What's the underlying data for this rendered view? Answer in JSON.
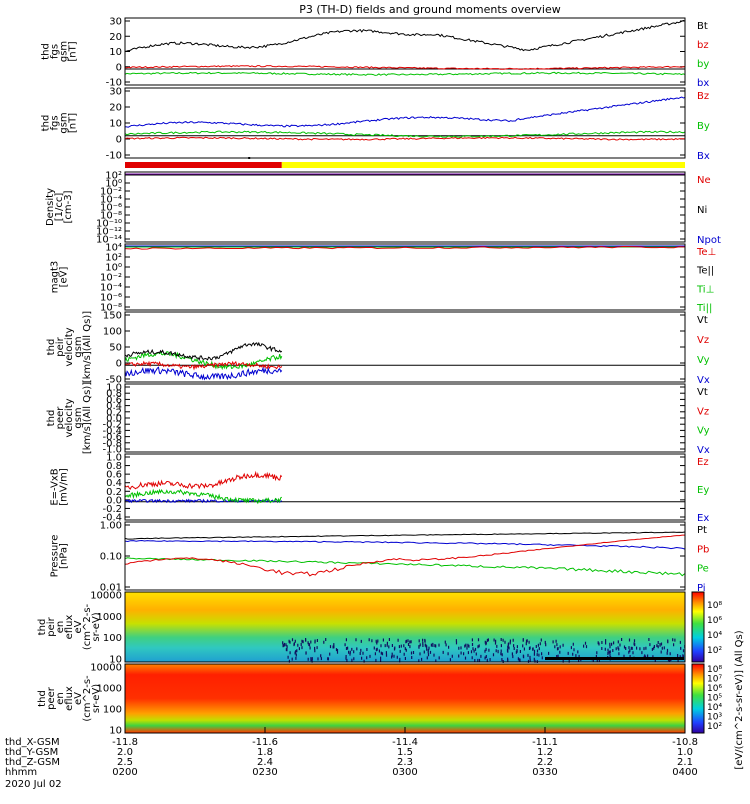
{
  "title": "P3 (TH-D) fields and ground moments overview",
  "colors": {
    "black": "#000000",
    "red": "#e00000",
    "green": "#00c000",
    "blue": "#0000d0",
    "yellow": "#ffff00",
    "purple": "#7000a0",
    "lime": "#30d030"
  },
  "panels": [
    {
      "id": "fgs-gsm",
      "ylabel": [
        "thd",
        "fgs",
        "gsm",
        "[nT]"
      ],
      "ticks": [
        "30",
        "20",
        "10",
        "0",
        "-10"
      ],
      "legend": [
        {
          "text": "Bt",
          "color": "#000000"
        },
        {
          "text": "bz",
          "color": "#e00000"
        },
        {
          "text": "by",
          "color": "#00c000"
        },
        {
          "text": "bx",
          "color": "#0000d0"
        }
      ]
    },
    {
      "id": "fgs-gsm-2",
      "ylabel": [
        "thd",
        "fgs",
        "gsm",
        "[nT]"
      ],
      "ticks": [
        "30",
        "20",
        "10",
        "0",
        "-10"
      ],
      "legend": [
        {
          "text": "Bz",
          "color": "#e00000"
        },
        {
          "text": "By",
          "color": "#00c000"
        },
        {
          "text": "Bx",
          "color": "#0000d0"
        }
      ]
    },
    {
      "id": "density",
      "ylabel": [
        "Density",
        "[1/cc]",
        "[cm-3]"
      ],
      "ticks": [
        "10²",
        "10⁰",
        "10⁻²",
        "10⁻⁴",
        "10⁻⁶",
        "10⁻⁸",
        "10⁻¹⁰",
        "10⁻¹²",
        "10⁻¹⁴"
      ],
      "legend": [
        {
          "text": "Ne",
          "color": "#e00000"
        },
        {
          "text": "Ni",
          "color": "#000000"
        },
        {
          "text": "Npot",
          "color": "#0000d0"
        }
      ]
    },
    {
      "id": "temperature",
      "ylabel": [
        "magt3",
        "[eV]"
      ],
      "ticks": [
        "10⁴",
        "10²",
        "10⁰",
        "10⁻²",
        "10⁻⁴",
        "10⁻⁶",
        "10⁻⁸"
      ],
      "legend": [
        {
          "text": "Te⊥",
          "color": "#e00000"
        },
        {
          "text": "Te||",
          "color": "#000000"
        },
        {
          "text": "Ti⊥",
          "color": "#00c000"
        },
        {
          "text": "Ti||",
          "color": "#00c000"
        }
      ]
    },
    {
      "id": "peir-velocity",
      "ylabel": [
        "thd",
        "peir",
        "velocity",
        "gsm",
        "[km/s](All Qs)]"
      ],
      "ticks": [
        "150",
        "100",
        "50",
        "0",
        "-50"
      ],
      "legend": [
        {
          "text": "Vt",
          "color": "#000000"
        },
        {
          "text": "Vz",
          "color": "#e00000"
        },
        {
          "text": "Vy",
          "color": "#00c000"
        },
        {
          "text": "Vx",
          "color": "#0000d0"
        }
      ]
    },
    {
      "id": "peer-velocity",
      "ylabel": [
        "thd",
        "peer",
        "velocity",
        "gsm",
        "[km/s](All Qs)]"
      ],
      "ticks": [
        "1.0",
        "0.8",
        "0.6",
        "0.4",
        "0.2",
        "0.0",
        "-0.2",
        "-0.4",
        "-0.6",
        "-0.8",
        "-1.0"
      ],
      "legend": [
        {
          "text": "Vt",
          "color": "#000000"
        },
        {
          "text": "Vz",
          "color": "#e00000"
        },
        {
          "text": "Vy",
          "color": "#00c000"
        },
        {
          "text": "Vx",
          "color": "#0000d0"
        }
      ]
    },
    {
      "id": "efield",
      "ylabel": [
        "E=-VxB",
        "[mV/m]"
      ],
      "ticks": [
        "1.0",
        "0.8",
        "0.6",
        "0.4",
        "0.2",
        "0.0",
        "-0.2",
        "-0.4"
      ],
      "legend": [
        {
          "text": "Ez",
          "color": "#e00000"
        },
        {
          "text": "Ey",
          "color": "#00c000"
        },
        {
          "text": "Ex",
          "color": "#0000d0"
        }
      ]
    },
    {
      "id": "pressure",
      "ylabel": [
        "Pressure",
        "[nPa]"
      ],
      "ticks": [
        "1.00",
        "0.10",
        "0.01"
      ],
      "legend": [
        {
          "text": "Pt",
          "color": "#000000"
        },
        {
          "text": "Pb",
          "color": "#e00000"
        },
        {
          "text": "Pe",
          "color": "#00c000"
        },
        {
          "text": "Pi",
          "color": "#0000d0"
        }
      ]
    },
    {
      "id": "peir-spec",
      "ylabel": [
        "thd",
        "peir",
        "en",
        "eflux",
        "eV",
        "(cm^2-s-",
        "sr-eV)"
      ],
      "ticks": [
        "10000",
        "1000",
        "100",
        "10"
      ]
    },
    {
      "id": "peer-spec",
      "ylabel": [
        "thd",
        "peer",
        "en",
        "eflux",
        "eV",
        "(cm^2-s-",
        "sr-eV)"
      ],
      "ticks": [
        "10000",
        "1000",
        "100",
        "10"
      ]
    }
  ],
  "colorbar": {
    "label": "[eV/(cm^2-s-sr-eV)] (All Qs)",
    "top_ticks": [
      "10⁸",
      "10⁶",
      "10⁴",
      "10²"
    ],
    "bottom_ticks": [
      "10⁸",
      "10⁷",
      "10⁶",
      "10⁵",
      "10⁴",
      "10³",
      "10²"
    ]
  },
  "axis": {
    "rows": [
      {
        "name": "thd_X-GSM",
        "values": [
          "-11.8",
          "-11.6",
          "-11.4",
          "-11.1",
          "-10.8"
        ]
      },
      {
        "name": "thd_Y-GSM",
        "values": [
          "2.0",
          "1.8",
          "1.5",
          "1.2",
          "1.0"
        ]
      },
      {
        "name": "thd_Z-GSM",
        "values": [
          "2.5",
          "2.4",
          "2.3",
          "2.2",
          "2.1"
        ]
      },
      {
        "name": "hhmm",
        "values": [
          "0200",
          "0230",
          "0300",
          "0330",
          "0400"
        ]
      }
    ],
    "date": "2020 Jul 02"
  },
  "chart_data": {
    "type": "line",
    "title": "P3 (TH-D) fields and ground moments overview",
    "x": [
      "0200",
      "0230",
      "0300",
      "0330",
      "0400"
    ],
    "series": [
      {
        "name": "Bt",
        "values": [
          12,
          15,
          23,
          12,
          30
        ]
      },
      {
        "name": "bz",
        "values": [
          1,
          2,
          2,
          1,
          3
        ]
      },
      {
        "name": "by",
        "values": [
          -3,
          -2,
          -2,
          -3,
          -3
        ]
      },
      {
        "name": "Bz (panel 2)",
        "values": [
          6,
          9,
          11,
          10,
          25
        ]
      },
      {
        "name": "Vt",
        "values": [
          35,
          50,
          null,
          null,
          null
        ]
      },
      {
        "name": "Ez",
        "values": [
          0.3,
          0.6,
          null,
          null,
          null
        ]
      },
      {
        "name": "Pt",
        "values": [
          0.35,
          0.42,
          0.45,
          0.5,
          0.55
        ]
      },
      {
        "name": "Pb",
        "values": [
          0.06,
          0.07,
          0.12,
          0.15,
          0.4
        ]
      },
      {
        "name": "Pe",
        "values": [
          0.09,
          0.08,
          0.07,
          0.05,
          0.02
        ]
      },
      {
        "name": "Pi",
        "values": [
          0.3,
          0.3,
          0.3,
          0.25,
          0.15
        ]
      }
    ]
  }
}
